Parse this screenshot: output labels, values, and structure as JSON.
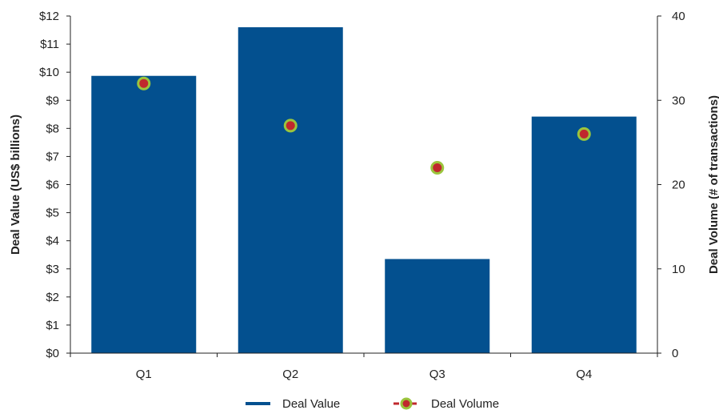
{
  "chart_data": {
    "type": "bar",
    "categories": [
      "Q1",
      "Q2",
      "Q3",
      "Q4"
    ],
    "series": [
      {
        "name": "Deal Value",
        "type": "bar",
        "axis": "left",
        "color": "#03508F",
        "values": [
          9.87,
          11.6,
          3.35,
          8.42
        ]
      },
      {
        "name": "Deal Volume",
        "type": "scatter",
        "axis": "right",
        "marker_fill": "#C0282D",
        "marker_stroke": "#9BC53D",
        "line_color": "#C0282D",
        "values": [
          32,
          27,
          22,
          26
        ]
      }
    ],
    "y_left": {
      "label": "Deal Value (US$ billions)",
      "ylim": [
        0,
        12
      ],
      "ticks": [
        "$0",
        "$1",
        "$2",
        "$3",
        "$4",
        "$5",
        "$6",
        "$7",
        "$8",
        "$9",
        "$10",
        "$11",
        "$12"
      ]
    },
    "y_right": {
      "label": "Deal Volume (# of transactions)",
      "ylim": [
        0,
        40
      ],
      "ticks": [
        "0",
        "10",
        "20",
        "30",
        "40"
      ]
    },
    "grid": false,
    "legend_position": "bottom"
  }
}
